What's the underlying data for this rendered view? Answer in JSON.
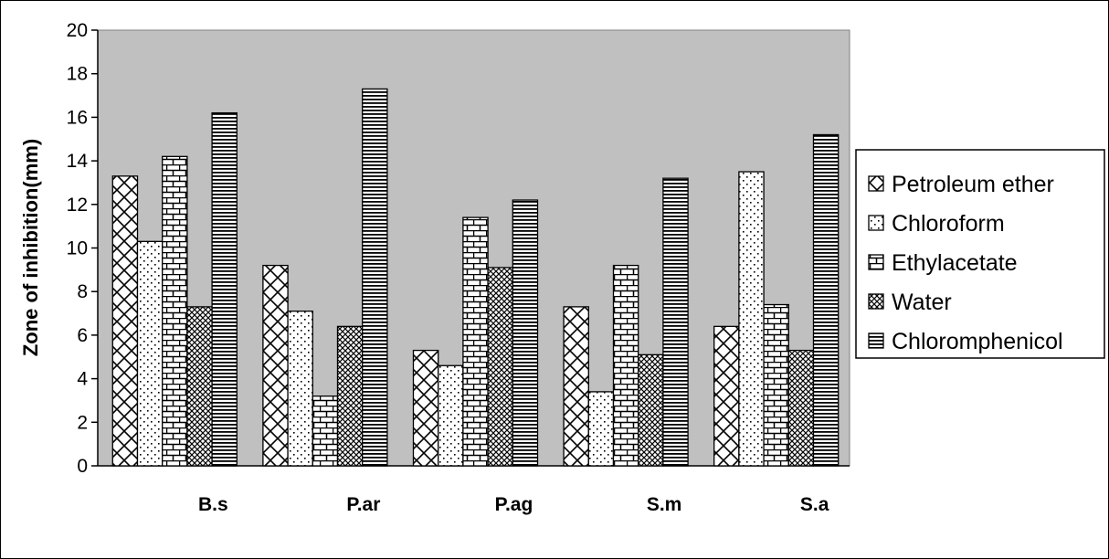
{
  "chart_data": {
    "type": "bar",
    "title": "",
    "xlabel": "",
    "ylabel": "Zone of inhibition(mm)",
    "ylim": [
      0,
      20
    ],
    "yticks": [
      0,
      2,
      4,
      6,
      8,
      10,
      12,
      14,
      16,
      18,
      20
    ],
    "grid": false,
    "legend_position": "right",
    "categories": [
      "B.s",
      "P.ar",
      "P.ag",
      "S.m",
      "S.a"
    ],
    "series": [
      {
        "name": "Petroleum ether",
        "values": [
          13.3,
          9.2,
          5.3,
          7.3,
          6.4
        ]
      },
      {
        "name": "Chloroform",
        "values": [
          10.3,
          7.1,
          4.6,
          3.4,
          13.5
        ]
      },
      {
        "name": "Ethylacetate",
        "values": [
          14.2,
          3.2,
          11.4,
          9.2,
          7.4
        ]
      },
      {
        "name": "Water",
        "values": [
          7.3,
          6.4,
          9.1,
          5.1,
          5.3
        ]
      },
      {
        "name": "Chloromphenicol",
        "values": [
          16.2,
          17.3,
          12.2,
          13.2,
          15.2
        ]
      }
    ],
    "colors": {
      "plot_background": "#c0c0c0",
      "bar_fill": "#ffffff",
      "pattern_ink": "#000000"
    }
  }
}
